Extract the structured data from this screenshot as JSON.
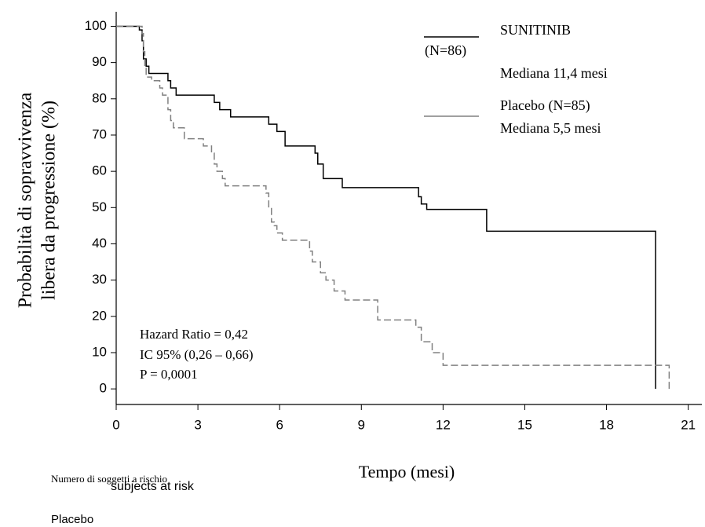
{
  "chart_data": {
    "type": "line",
    "step": true,
    "y_label_lines": [
      "Probabilità di sopravvivenza",
      "libera da progressione (%)"
    ],
    "x_label": "Tempo (mesi)",
    "xlim": [
      0,
      21.5
    ],
    "ylim": [
      -4.3,
      104
    ],
    "xticks": [
      0,
      3,
      6,
      9,
      12,
      15,
      18,
      21
    ],
    "yticks": [
      0,
      10,
      20,
      30,
      40,
      50,
      60,
      70,
      80,
      90,
      100
    ],
    "series": [
      {
        "name": "SUNITINIB",
        "n_label": "(N=86)",
        "median_label": "Mediana 11,4 mesi",
        "color": "#000000",
        "dash": "none",
        "x": [
          0,
          0.85,
          0.95,
          1.0,
          1.1,
          1.2,
          1.9,
          2.0,
          2.2,
          3.6,
          3.8,
          4.2,
          5.6,
          5.9,
          6.2,
          7.3,
          7.4,
          7.6,
          8.3,
          11.1,
          11.2,
          11.4,
          13.6,
          19.8
        ],
        "values": [
          100,
          99,
          96,
          91,
          89,
          87,
          85,
          83,
          81,
          79,
          77,
          75,
          73,
          71,
          67,
          65,
          62,
          58,
          55.5,
          53,
          51,
          49.5,
          43.5,
          0
        ]
      },
      {
        "name": "Placebo (N=85)",
        "median_label": "Mediana 5,5 mesi",
        "color": "#808080",
        "dash": "9 4",
        "x": [
          0,
          0.95,
          1.0,
          1.05,
          1.1,
          1.3,
          1.6,
          1.7,
          1.9,
          2.0,
          2.1,
          2.5,
          3.2,
          3.5,
          3.6,
          3.7,
          3.9,
          4.0,
          5.5,
          5.6,
          5.7,
          5.8,
          5.9,
          6.1,
          7.1,
          7.2,
          7.5,
          7.7,
          8.0,
          8.4,
          9.6,
          11.0,
          11.2,
          11.6,
          12.0,
          20.3
        ],
        "values": [
          100,
          98,
          93,
          89,
          86,
          85,
          83,
          81,
          77,
          74,
          72,
          69,
          67,
          65,
          62,
          60,
          58,
          56,
          54,
          50,
          46,
          45,
          43,
          41,
          38,
          35,
          32,
          30,
          27,
          24.5,
          19,
          17,
          13,
          10,
          6.5,
          0
        ]
      }
    ],
    "annotations": [
      "Hazard Ratio = 0,42",
      "IC 95% (0,26 – 0,66)",
      "P = 0,0001"
    ],
    "risk_table": {
      "title": "Numero di soggetti a rischio",
      "subtitle": "subjects at risk",
      "rows": [
        "Placebo"
      ]
    }
  }
}
